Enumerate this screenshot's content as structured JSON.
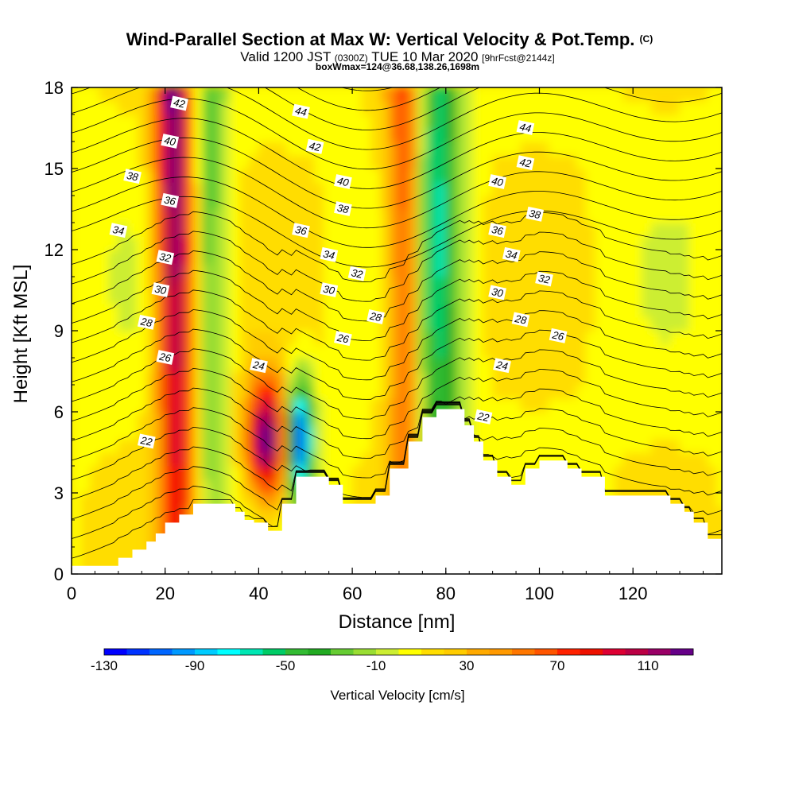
{
  "chart_data": {
    "type": "heatmap",
    "title": "Wind-Parallel Section at Max W: Vertical Velocity & Pot.Temp.",
    "title_suffix": "(C)",
    "subtitle": {
      "valid": "Valid 1200 JST",
      "utc": "(0300Z)",
      "date": "TUE 10 Mar 2020",
      "fcst": "[9hrFcst@2144z]"
    },
    "subtitle2": "boxWmax=124@36.68,138.26,1698m",
    "xlabel": "Distance [nm]",
    "ylabel": "Height [Kft MSL]",
    "xlim": [
      0,
      139
    ],
    "ylim": [
      0,
      18
    ],
    "x_ticks": [
      0,
      20,
      40,
      60,
      80,
      100,
      120
    ],
    "y_ticks": [
      0,
      3,
      6,
      9,
      12,
      15,
      18
    ],
    "colorbar": {
      "label": "Vertical Velocity [cm/s]",
      "ticks": [
        -130,
        -90,
        -50,
        -10,
        30,
        70,
        110
      ],
      "range": [
        -130,
        130
      ],
      "colors": [
        "#0000ff",
        "#0033ff",
        "#0066ff",
        "#0099ff",
        "#00ccff",
        "#00ffff",
        "#00e6b3",
        "#00cc66",
        "#33bb33",
        "#22aa22",
        "#66cc33",
        "#99dd33",
        "#ccee33",
        "#ffff00",
        "#ffdd00",
        "#ffcc00",
        "#ffaa00",
        "#ff9900",
        "#ff7700",
        "#ff5500",
        "#ff2200",
        "#ee1100",
        "#dd0033",
        "#bb0044",
        "#990066",
        "#660088"
      ]
    },
    "terrain_kft": [
      [
        0,
        0.3
      ],
      [
        10,
        0.3
      ],
      [
        10,
        0.6
      ],
      [
        13,
        0.6
      ],
      [
        13,
        0.9
      ],
      [
        16,
        0.9
      ],
      [
        16,
        1.2
      ],
      [
        18,
        1.2
      ],
      [
        18,
        1.5
      ],
      [
        20,
        1.5
      ],
      [
        20,
        1.9
      ],
      [
        23,
        1.9
      ],
      [
        23,
        2.2
      ],
      [
        26,
        2.2
      ],
      [
        26,
        2.6
      ],
      [
        29,
        2.6
      ],
      [
        29,
        2.6
      ],
      [
        35,
        2.6
      ],
      [
        35,
        2.3
      ],
      [
        37,
        2.3
      ],
      [
        37,
        2.0
      ],
      [
        39,
        2.0
      ],
      [
        39,
        1.9
      ],
      [
        42,
        1.9
      ],
      [
        42,
        1.6
      ],
      [
        45,
        1.6
      ],
      [
        45,
        2.6
      ],
      [
        48,
        2.6
      ],
      [
        48,
        3.6
      ],
      [
        55,
        3.6
      ],
      [
        55,
        3.3
      ],
      [
        58,
        3.3
      ],
      [
        58,
        2.6
      ],
      [
        61,
        2.6
      ],
      [
        61,
        2.6
      ],
      [
        65,
        2.6
      ],
      [
        65,
        2.9
      ],
      [
        68,
        2.9
      ],
      [
        68,
        3.9
      ],
      [
        72,
        3.9
      ],
      [
        72,
        4.9
      ],
      [
        75,
        4.9
      ],
      [
        75,
        5.8
      ],
      [
        78,
        5.8
      ],
      [
        78,
        6.1
      ],
      [
        84,
        6.1
      ],
      [
        84,
        5.5
      ],
      [
        86,
        5.5
      ],
      [
        86,
        4.9
      ],
      [
        88,
        4.9
      ],
      [
        88,
        4.2
      ],
      [
        91,
        4.2
      ],
      [
        91,
        3.6
      ],
      [
        94,
        3.6
      ],
      [
        94,
        3.3
      ],
      [
        97,
        3.3
      ],
      [
        97,
        3.9
      ],
      [
        100,
        3.9
      ],
      [
        100,
        4.2
      ],
      [
        106,
        4.2
      ],
      [
        106,
        3.9
      ],
      [
        109,
        3.9
      ],
      [
        109,
        3.6
      ],
      [
        114,
        3.6
      ],
      [
        114,
        2.9
      ],
      [
        128,
        2.9
      ],
      [
        128,
        2.6
      ],
      [
        131,
        2.6
      ],
      [
        131,
        2.3
      ],
      [
        133,
        2.3
      ],
      [
        133,
        1.9
      ],
      [
        136,
        1.9
      ],
      [
        136,
        1.3
      ],
      [
        139,
        1.3
      ]
    ],
    "theta_contours": [
      22,
      24,
      26,
      28,
      30,
      32,
      34,
      36,
      38,
      40,
      42,
      44
    ],
    "contour_labels": [
      {
        "text": "42",
        "x": 23,
        "y": 17.4
      },
      {
        "text": "40",
        "x": 21,
        "y": 16.0
      },
      {
        "text": "38",
        "x": 13,
        "y": 14.7
      },
      {
        "text": "36",
        "x": 21,
        "y": 13.8
      },
      {
        "text": "34",
        "x": 10,
        "y": 12.7
      },
      {
        "text": "32",
        "x": 20,
        "y": 11.7
      },
      {
        "text": "30",
        "x": 19,
        "y": 10.5
      },
      {
        "text": "28",
        "x": 16,
        "y": 9.3
      },
      {
        "text": "26",
        "x": 20,
        "y": 8.0
      },
      {
        "text": "24",
        "x": 40,
        "y": 7.7
      },
      {
        "text": "22",
        "x": 16,
        "y": 4.9
      },
      {
        "text": "44",
        "x": 49,
        "y": 17.1
      },
      {
        "text": "42",
        "x": 52,
        "y": 15.8
      },
      {
        "text": "40",
        "x": 58,
        "y": 14.5
      },
      {
        "text": "38",
        "x": 58,
        "y": 13.5
      },
      {
        "text": "36",
        "x": 49,
        "y": 12.7
      },
      {
        "text": "34",
        "x": 55,
        "y": 11.8
      },
      {
        "text": "32",
        "x": 61,
        "y": 11.1
      },
      {
        "text": "30",
        "x": 55,
        "y": 10.5
      },
      {
        "text": "28",
        "x": 65,
        "y": 9.5
      },
      {
        "text": "26",
        "x": 58,
        "y": 8.7
      },
      {
        "text": "44",
        "x": 97,
        "y": 16.5
      },
      {
        "text": "42",
        "x": 97,
        "y": 15.2
      },
      {
        "text": "40",
        "x": 91,
        "y": 14.5
      },
      {
        "text": "38",
        "x": 99,
        "y": 13.3
      },
      {
        "text": "36",
        "x": 91,
        "y": 12.7
      },
      {
        "text": "34",
        "x": 94,
        "y": 11.8
      },
      {
        "text": "32",
        "x": 101,
        "y": 10.9
      },
      {
        "text": "30",
        "x": 91,
        "y": 10.4
      },
      {
        "text": "28",
        "x": 96,
        "y": 9.4
      },
      {
        "text": "26",
        "x": 104,
        "y": 8.8
      },
      {
        "text": "24",
        "x": 92,
        "y": 7.7
      },
      {
        "text": "22",
        "x": 88,
        "y": 5.8
      }
    ],
    "features": [
      {
        "type": "updraft",
        "x": 23,
        "peak": 120,
        "width": 3
      },
      {
        "type": "updraft",
        "x": 42,
        "peak": 124,
        "width": 3
      },
      {
        "type": "updraft",
        "x": 72,
        "peak": 90,
        "width": 3
      },
      {
        "type": "downdraft",
        "x": 29,
        "peak": -40,
        "width": 3
      },
      {
        "type": "downdraft",
        "x": 49,
        "peak": -120,
        "width": 2
      },
      {
        "type": "downdraft",
        "x": 77,
        "peak": -80,
        "width": 4
      }
    ]
  }
}
